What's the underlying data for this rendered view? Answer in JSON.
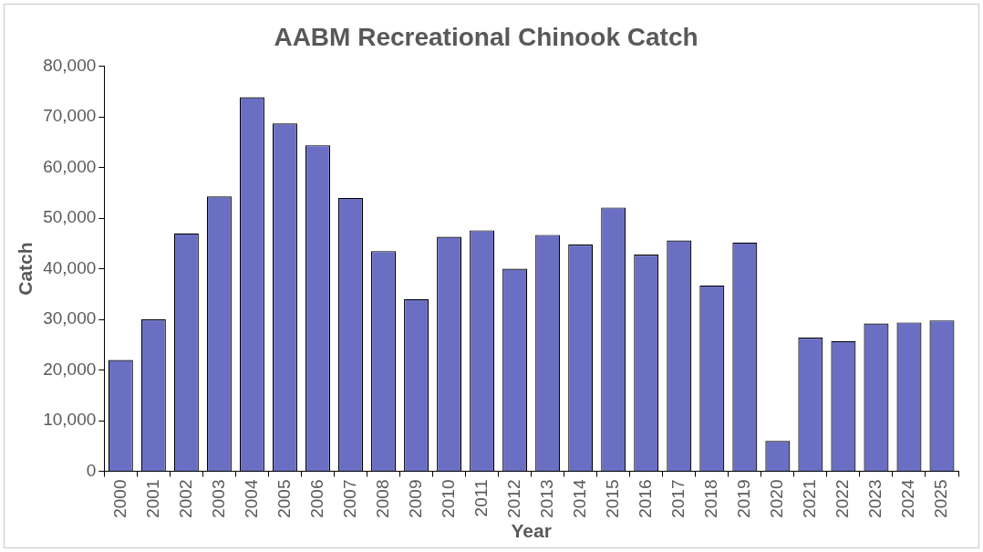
{
  "chart_data": {
    "type": "bar",
    "title": "AABM Recreational Chinook Catch",
    "xlabel": "Year",
    "ylabel": "Catch",
    "categories": [
      "2000",
      "2001",
      "2002",
      "2003",
      "2004",
      "2005",
      "2006",
      "2007",
      "2008",
      "2009",
      "2010",
      "2011",
      "2012",
      "2013",
      "2014",
      "2015",
      "2016",
      "2017",
      "2018",
      "2019",
      "2020",
      "2021",
      "2022",
      "2023",
      "2024",
      "2025"
    ],
    "values": [
      22000,
      30000,
      47000,
      54300,
      73900,
      68700,
      64400,
      54000,
      43500,
      34000,
      46300,
      47600,
      40000,
      46700,
      44800,
      52100,
      42800,
      45600,
      36700,
      45200,
      6000,
      26400,
      25700,
      29200,
      29400,
      29800
    ],
    "color": "#6b6fc4",
    "ylim": [
      0,
      80000
    ],
    "yticks": [
      {
        "value": 0,
        "label": "0"
      },
      {
        "value": 10000,
        "label": "10,000"
      },
      {
        "value": 20000,
        "label": "20,000"
      },
      {
        "value": 30000,
        "label": "30,000"
      },
      {
        "value": 40000,
        "label": "40,000"
      },
      {
        "value": 50000,
        "label": "50,000"
      },
      {
        "value": 60000,
        "label": "60,000"
      },
      {
        "value": 70000,
        "label": "70,000"
      },
      {
        "value": 80000,
        "label": "80,000"
      }
    ],
    "grid": false,
    "legend": false
  }
}
